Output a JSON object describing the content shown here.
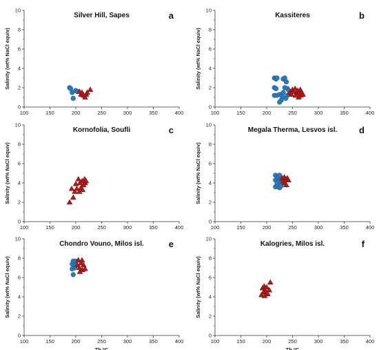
{
  "colors": {
    "circle": "#2b7bbd",
    "circle_stroke": "#1c5a8e",
    "triangle": "#b31b1b",
    "triangle_stroke": "#7a0f0f",
    "axis": "#333333"
  },
  "chart_data": [
    {
      "type": "scatter",
      "letter": "a",
      "title": "Silver Hill, Sapes",
      "xlabel": "",
      "ylabel": "Salinity (wt% NaCl equiv)",
      "xlim": [
        100,
        400
      ],
      "ylim": [
        0,
        10
      ],
      "xticks": [
        "100",
        "150",
        "200",
        "250",
        "300",
        "350",
        "400"
      ],
      "yticks": [
        "0",
        "2",
        "4",
        "6",
        "8",
        "10"
      ],
      "series": [
        {
          "marker": "circle",
          "points": [
            [
              188,
              2.0
            ],
            [
              190,
              1.9
            ],
            [
              193,
              1.5
            ],
            [
              195,
              0.9
            ],
            [
              200,
              1.7
            ],
            [
              203,
              1.6
            ]
          ]
        },
        {
          "marker": "triangle",
          "points": [
            [
              207,
              1.6
            ],
            [
              210,
              1.3
            ],
            [
              212,
              1.5
            ],
            [
              215,
              1.2
            ],
            [
              218,
              1.0
            ],
            [
              220,
              1.3
            ],
            [
              222,
              1.5
            ],
            [
              228,
              1.8
            ]
          ]
        }
      ]
    },
    {
      "type": "scatter",
      "letter": "b",
      "title": "Kassiteres",
      "xlabel": "",
      "ylabel": "Salinity (wt% NaCl equiv)",
      "xlim": [
        100,
        400
      ],
      "ylim": [
        0,
        10
      ],
      "xticks": [
        "100",
        "150",
        "200",
        "250",
        "300",
        "350",
        "400"
      ],
      "yticks": [
        "0",
        "2",
        "4",
        "6",
        "8",
        "10"
      ],
      "series": [
        {
          "marker": "circle",
          "points": [
            [
              215,
              3.0
            ],
            [
              218,
              2.9
            ],
            [
              220,
              3.0
            ],
            [
              215,
              2.0
            ],
            [
              218,
              1.9
            ],
            [
              215,
              1.2
            ],
            [
              220,
              1.2
            ],
            [
              225,
              1.3
            ],
            [
              230,
              1.1
            ],
            [
              228,
              0.7
            ],
            [
              225,
              0.5
            ],
            [
              232,
              2.9
            ],
            [
              235,
              3.0
            ],
            [
              238,
              2.6
            ],
            [
              235,
              2.0
            ],
            [
              240,
              1.9
            ],
            [
              232,
              1.5
            ],
            [
              240,
              1.2
            ],
            [
              243,
              1.7
            ],
            [
              237,
              0.9
            ]
          ]
        },
        {
          "marker": "triangle",
          "points": [
            [
              245,
              1.5
            ],
            [
              250,
              1.8
            ],
            [
              252,
              1.6
            ],
            [
              255,
              1.9
            ],
            [
              258,
              1.5
            ],
            [
              260,
              1.7
            ],
            [
              262,
              1.4
            ],
            [
              265,
              1.8
            ],
            [
              266,
              1.2
            ],
            [
              268,
              1.5
            ],
            [
              270,
              1.3
            ],
            [
              248,
              1.3
            ],
            [
              256,
              1.2
            ],
            [
              262,
              1.0
            ]
          ]
        }
      ]
    },
    {
      "type": "scatter",
      "letter": "c",
      "title": "Kornofolia, Soufli",
      "xlabel": "",
      "ylabel": "Salinity (wt% NaCl equiv)",
      "xlim": [
        100,
        400
      ],
      "ylim": [
        0,
        10
      ],
      "xticks": [
        "100",
        "150",
        "200",
        "250",
        "300",
        "350",
        "400"
      ],
      "yticks": [
        "0",
        "2",
        "4",
        "6",
        "8",
        "10"
      ],
      "series": [
        {
          "marker": "circle",
          "points": []
        },
        {
          "marker": "triangle",
          "points": [
            [
              188,
              2.0
            ],
            [
              192,
              3.4
            ],
            [
              195,
              2.5
            ],
            [
              198,
              3.1
            ],
            [
              200,
              3.9
            ],
            [
              202,
              3.4
            ],
            [
              205,
              4.4
            ],
            [
              207,
              3.1
            ],
            [
              208,
              4.0
            ],
            [
              210,
              3.5
            ],
            [
              212,
              4.2
            ],
            [
              213,
              3.3
            ],
            [
              215,
              3.8
            ],
            [
              217,
              4.4
            ],
            [
              218,
              4.0
            ],
            [
              220,
              4.2
            ]
          ]
        }
      ]
    },
    {
      "type": "scatter",
      "letter": "d",
      "title": "Megala Therma, Lesvos isl.",
      "xlabel": "",
      "ylabel": "Salinity (wt% NaCl equiv)",
      "xlim": [
        100,
        400
      ],
      "ylim": [
        0,
        10
      ],
      "xticks": [
        "100",
        "150",
        "200",
        "250",
        "300",
        "350",
        "400"
      ],
      "yticks": [
        "0",
        "2",
        "4",
        "6",
        "8",
        "10"
      ],
      "series": [
        {
          "marker": "circle",
          "points": [
            [
              217,
              4.8
            ],
            [
              217,
              4.3
            ],
            [
              217,
              3.6
            ],
            [
              220,
              4.0
            ],
            [
              222,
              4.6
            ],
            [
              222,
              3.6
            ],
            [
              225,
              4.2
            ],
            [
              225,
              4.8
            ],
            [
              225,
              3.5
            ],
            [
              228,
              4.0
            ],
            [
              228,
              3.7
            ]
          ]
        },
        {
          "marker": "triangle",
          "points": [
            [
              230,
              4.5
            ],
            [
              232,
              4.2
            ],
            [
              234,
              4.6
            ],
            [
              235,
              4.0
            ],
            [
              237,
              4.4
            ],
            [
              238,
              3.8
            ],
            [
              240,
              4.5
            ],
            [
              242,
              4.3
            ]
          ]
        }
      ]
    },
    {
      "type": "scatter",
      "letter": "e",
      "title": "Chondro Vouno, Milos isl.",
      "xlabel": "Th ºC",
      "ylabel": "Salinity (wt% NaCl equiv)",
      "xlim": [
        100,
        400
      ],
      "ylim": [
        0,
        10
      ],
      "xticks": [
        "100",
        "150",
        "200",
        "250",
        "300",
        "350",
        "400"
      ],
      "yticks": [
        "0",
        "2",
        "4",
        "6",
        "8",
        "10"
      ],
      "series": [
        {
          "marker": "circle",
          "points": [
            [
              193,
              7.4
            ],
            [
              195,
              7.7
            ],
            [
              193,
              6.9
            ],
            [
              195,
              6.3
            ],
            [
              198,
              7.0
            ],
            [
              200,
              7.7
            ],
            [
              200,
              7.3
            ]
          ]
        },
        {
          "marker": "triangle",
          "points": [
            [
              203,
              7.3
            ],
            [
              205,
              7.8
            ],
            [
              207,
              7.0
            ],
            [
              208,
              6.6
            ],
            [
              210,
              7.5
            ],
            [
              212,
              7.8
            ],
            [
              213,
              6.8
            ],
            [
              215,
              7.3
            ],
            [
              218,
              6.9
            ]
          ]
        }
      ]
    },
    {
      "type": "scatter",
      "letter": "f",
      "title": "Kalogries, Milos isl.",
      "xlabel": "Th ºC",
      "ylabel": "Salinity (wt% NaCl equiv)",
      "xlim": [
        100,
        400
      ],
      "ylim": [
        0,
        10
      ],
      "xticks": [
        "100",
        "150",
        "200",
        "250",
        "300",
        "350",
        "400"
      ],
      "yticks": [
        "0",
        "2",
        "4",
        "6",
        "8",
        "10"
      ],
      "series": [
        {
          "marker": "circle",
          "points": []
        },
        {
          "marker": "triangle",
          "points": [
            [
              190,
              4.2
            ],
            [
              192,
              4.9
            ],
            [
              194,
              4.5
            ],
            [
              195,
              5.1
            ],
            [
              196,
              4.1
            ],
            [
              198,
              4.6
            ],
            [
              200,
              5.0
            ],
            [
              202,
              4.3
            ],
            [
              205,
              4.7
            ],
            [
              207,
              5.5
            ]
          ]
        }
      ]
    }
  ]
}
